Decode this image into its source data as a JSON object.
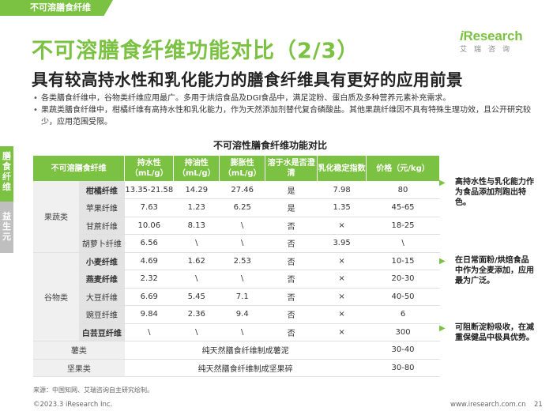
{
  "top_tag": "不可溶膳食纤维",
  "logo": {
    "main_prefix": "i",
    "main_rest": "Research",
    "sub": "艾瑞咨询"
  },
  "title": "不可溶膳食纤维功能对比（2/3）",
  "subtitle": "具有较高持水性和乳化能力的膳食纤维具有更好的应用前景",
  "bullets": [
    "各类膳食纤维中，谷物类纤维应用最广。多用于烘焙食品及DGI食品中，满足淀粉、蛋白质及多种营养元素补充需求。",
    "果蔬类膳食纤维中，柑橘纤维有高持水性和乳化能力，作为天然添加剂替代复合磷酸盐。其他果蔬纤维因不具有特殊生理功效，且公开研究较少，应用范围受限。"
  ],
  "side_tab": {
    "primary": "膳食纤维",
    "secondary": "益生元"
  },
  "table_title": "不可溶性膳食纤维功能对比",
  "table": {
    "headers": [
      "不可溶膳食纤维",
      "持水性（mL/g）",
      "持油性（mL/g）",
      "膨胀性（mL/g）",
      "溶于水是否澄清",
      "乳化稳定指数",
      "价格（元/kg）"
    ],
    "groups": [
      {
        "category": "果蔬类",
        "rows": [
          {
            "name": "柑橘纤维",
            "bold": true,
            "values": [
              "13.35-21.58",
              "14.29",
              "27.46",
              "是",
              "7.98",
              "80"
            ]
          },
          {
            "name": "苹果纤维",
            "bold": false,
            "values": [
              "7.63",
              "1.23",
              "6.25",
              "是",
              "1.35",
              "45-65"
            ]
          },
          {
            "name": "甘蔗纤维",
            "bold": false,
            "values": [
              "10.06",
              "8.13",
              "\\",
              "否",
              "×",
              "18-25"
            ]
          },
          {
            "name": "胡萝卜纤维",
            "bold": false,
            "values": [
              "6.56",
              "\\",
              "\\",
              "否",
              "3.95",
              "\\"
            ]
          }
        ]
      },
      {
        "category": "谷物类",
        "rows": [
          {
            "name": "小麦纤维",
            "bold": true,
            "values": [
              "4.69",
              "1.62",
              "2.53",
              "否",
              "×",
              "10-15"
            ]
          },
          {
            "name": "燕麦纤维",
            "bold": true,
            "values": [
              "2.32",
              "\\",
              "\\",
              "否",
              "×",
              "20-30"
            ]
          },
          {
            "name": "大豆纤维",
            "bold": false,
            "values": [
              "6.69",
              "5.45",
              "7.1",
              "否",
              "×",
              "40-50"
            ]
          },
          {
            "name": "豌豆纤维",
            "bold": false,
            "values": [
              "9.84",
              "2.36",
              "9.4",
              "否",
              "×",
              "6"
            ]
          },
          {
            "name": "白芸豆纤维",
            "bold": true,
            "values": [
              "\\",
              "\\",
              "\\",
              "否",
              "×",
              "300"
            ]
          }
        ]
      }
    ],
    "single_rows": [
      {
        "name": "薯类",
        "desc": "纯天然膳食纤维制成薯泥",
        "price": "30-40"
      },
      {
        "name": "坚果类",
        "desc": "纯天然膳食纤维制成坚果碎",
        "price": "30-80"
      }
    ]
  },
  "notes": [
    "高持水性与乳化能力作为食品添加剂跑出特色。",
    "在日常面粉/烘焙食品中作为全麦添加，应用最为广泛。",
    "可阻断淀粉吸收，在减重保健品中极具优势。"
  ],
  "source": "来源：中国知网、艾瑞咨询自主研究绘制。",
  "footer": {
    "copyright": "©2023.3 iResearch Inc.",
    "url": "www.iresearch.com.cn",
    "page": "21"
  },
  "colors": {
    "accent": "#7cc242",
    "grey_tab": "#bfbfbf"
  }
}
